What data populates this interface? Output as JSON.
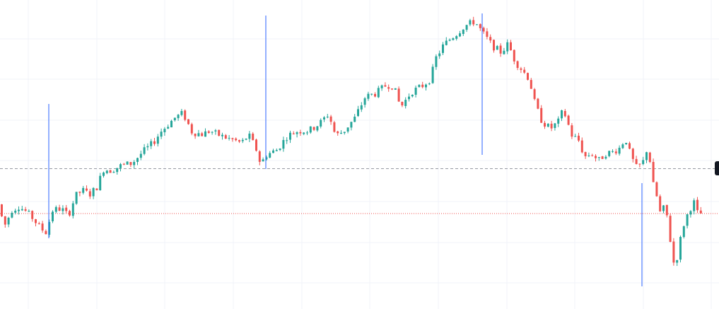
{
  "chart_data": {
    "type": "candlestick",
    "title": "",
    "xlabel": "",
    "ylabel": "",
    "ylim": [
      0,
      437
    ],
    "grid": true,
    "colors": {
      "up": "#26a69a",
      "down": "#ef5350",
      "grid": "#f0f3fa",
      "dashed_line": "#9598a1",
      "dotted_line": "#ef5350",
      "marker_line": "#2962ff",
      "price_badge": "#131722"
    },
    "grid_y": [
      37,
      94,
      152,
      210,
      267,
      325,
      382
    ],
    "grid_x": [
      40,
      137,
      233,
      330,
      427,
      523,
      620,
      717,
      813,
      910,
      1006
    ],
    "dashed_level": 198.5,
    "dotted_level": 135,
    "markers": [
      {
        "x": 69,
        "top": 290,
        "bottom": 100
      },
      {
        "x": 376,
        "top": 415,
        "bottom": 198
      },
      {
        "x": 682,
        "top": 418,
        "bottom": 218
      },
      {
        "x": 908,
        "top": 178,
        "bottom": 32
      }
    ],
    "price_path": [
      [
        0,
        148
      ],
      [
        10,
        118
      ],
      [
        20,
        140
      ],
      [
        30,
        145
      ],
      [
        40,
        138
      ],
      [
        50,
        128
      ],
      [
        60,
        115
      ],
      [
        68,
        108
      ],
      [
        78,
        140
      ],
      [
        90,
        142
      ],
      [
        100,
        132
      ],
      [
        110,
        160
      ],
      [
        120,
        168
      ],
      [
        130,
        162
      ],
      [
        140,
        172
      ],
      [
        150,
        198
      ],
      [
        160,
        196
      ],
      [
        175,
        203
      ],
      [
        190,
        206
      ],
      [
        205,
        222
      ],
      [
        220,
        235
      ],
      [
        230,
        250
      ],
      [
        240,
        260
      ],
      [
        250,
        270
      ],
      [
        262,
        277
      ],
      [
        275,
        250
      ],
      [
        290,
        247
      ],
      [
        300,
        252
      ],
      [
        315,
        245
      ],
      [
        330,
        240
      ],
      [
        345,
        235
      ],
      [
        355,
        246
      ],
      [
        365,
        228
      ],
      [
        372,
        205
      ],
      [
        380,
        218
      ],
      [
        395,
        225
      ],
      [
        410,
        245
      ],
      [
        425,
        252
      ],
      [
        440,
        252
      ],
      [
        455,
        262
      ],
      [
        468,
        276
      ],
      [
        478,
        245
      ],
      [
        490,
        252
      ],
      [
        505,
        270
      ],
      [
        520,
        300
      ],
      [
        535,
        305
      ],
      [
        550,
        317
      ],
      [
        560,
        315
      ],
      [
        570,
        285
      ],
      [
        585,
        307
      ],
      [
        600,
        315
      ],
      [
        612,
        325
      ],
      [
        620,
        355
      ],
      [
        630,
        372
      ],
      [
        640,
        382
      ],
      [
        650,
        390
      ],
      [
        660,
        400
      ],
      [
        675,
        407
      ],
      [
        685,
        392
      ],
      [
        700,
        372
      ],
      [
        712,
        363
      ],
      [
        722,
        375
      ],
      [
        732,
        350
      ],
      [
        742,
        338
      ],
      [
        752,
        325
      ],
      [
        760,
        290
      ],
      [
        770,
        265
      ],
      [
        782,
        255
      ],
      [
        793,
        265
      ],
      [
        800,
        282
      ],
      [
        812,
        246
      ],
      [
        822,
        238
      ],
      [
        830,
        215
      ],
      [
        840,
        220
      ],
      [
        850,
        210
      ],
      [
        860,
        220
      ],
      [
        870,
        222
      ],
      [
        880,
        228
      ],
      [
        888,
        242
      ],
      [
        895,
        218
      ],
      [
        903,
        200
      ],
      [
        912,
        205
      ],
      [
        920,
        232
      ],
      [
        926,
        180
      ],
      [
        932,
        160
      ],
      [
        938,
        132
      ],
      [
        944,
        148
      ],
      [
        950,
        110
      ],
      [
        955,
        65
      ],
      [
        960,
        68
      ],
      [
        965,
        95
      ],
      [
        970,
        118
      ],
      [
        978,
        140
      ],
      [
        986,
        152
      ],
      [
        990,
        135
      ]
    ]
  }
}
